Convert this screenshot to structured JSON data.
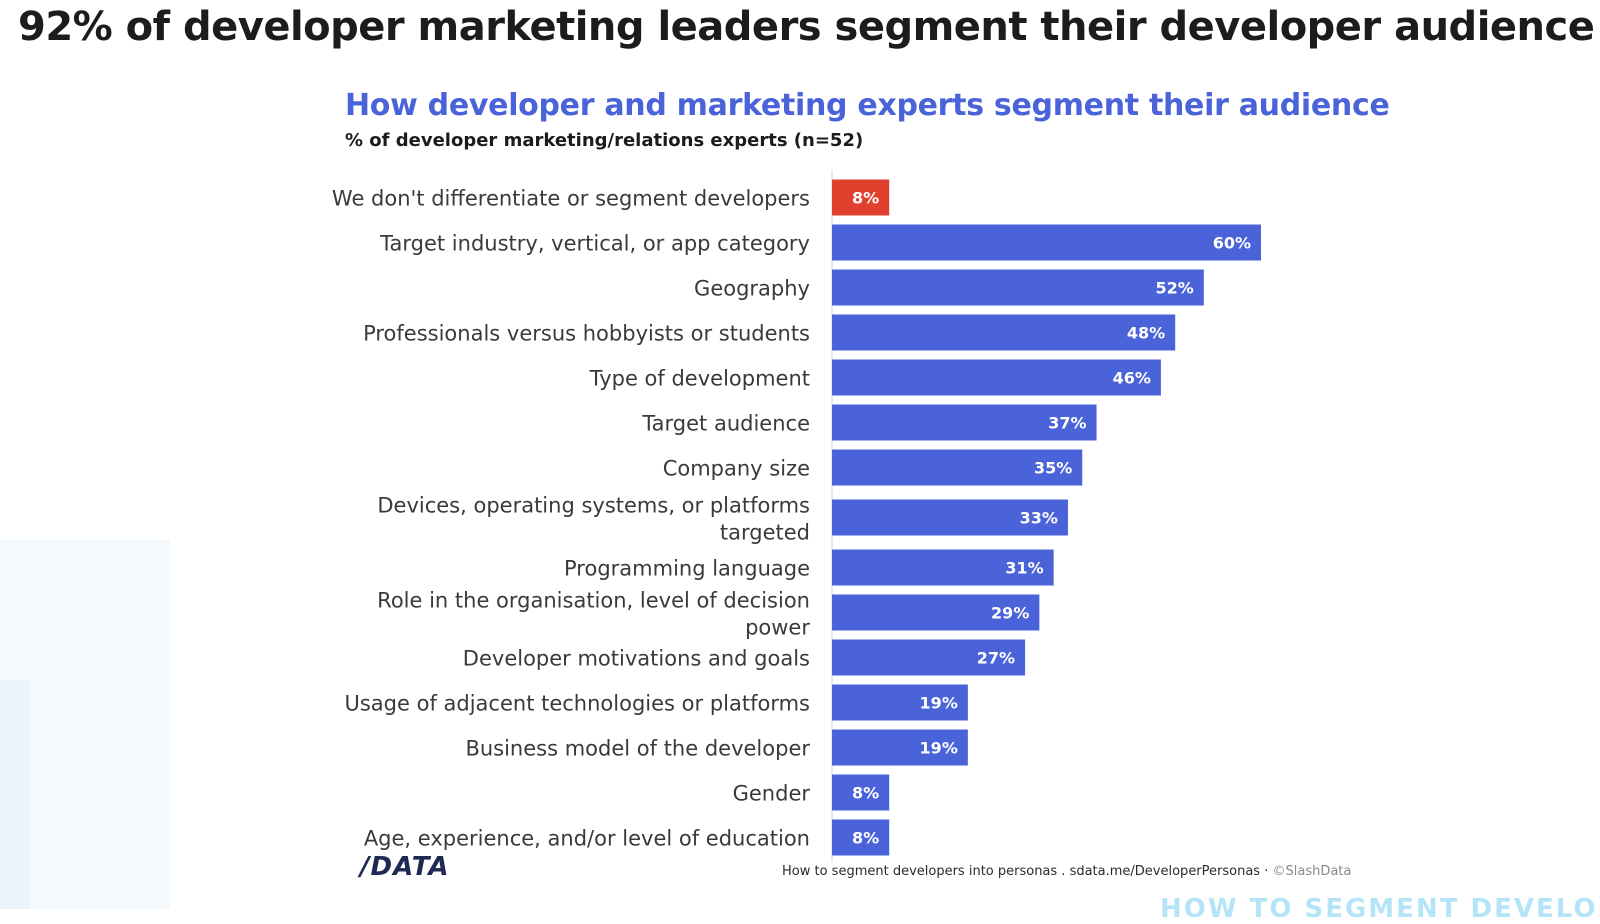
{
  "slide": {
    "title": "92% of developer marketing leaders segment their developer audience"
  },
  "chart_data": {
    "type": "bar",
    "orientation": "horizontal",
    "title": "How developer and marketing experts segment their audience",
    "subtitle": "% of developer marketing/relations experts (n=52)",
    "categories": [
      "We don't differentiate or segment developers",
      "Target industry, vertical, or app category",
      "Geography",
      "Professionals versus hobbyists or students",
      "Type of development",
      "Target audience",
      "Company size",
      "Devices, operating systems, or platforms targeted",
      "Programming language",
      "Role in the organisation, level of decision power",
      "Developer motivations and goals",
      "Usage of adjacent technologies or platforms",
      "Business model of the developer",
      "Gender",
      "Age, experience, and/or level of education"
    ],
    "values": [
      8,
      60,
      52,
      48,
      46,
      37,
      35,
      33,
      31,
      29,
      27,
      19,
      19,
      8,
      8
    ],
    "value_labels": [
      "8%",
      "60%",
      "52%",
      "48%",
      "46%",
      "37%",
      "35%",
      "33%",
      "31%",
      "29%",
      "27%",
      "19%",
      "19%",
      "8%",
      "8%"
    ],
    "highlight_index": 0,
    "xlim": [
      0,
      100
    ],
    "unit": "%",
    "grid": false,
    "colors": {
      "bar": "#4a63d8",
      "highlight": "#e0412f"
    }
  },
  "footer": {
    "logo": "/DATA",
    "source": "How to segment developers into personas . sdata.me/DeveloperPersonas · ",
    "copyright": "©SlashData"
  },
  "partial_text": "HOW TO SEGMENT DEVELOPERS"
}
